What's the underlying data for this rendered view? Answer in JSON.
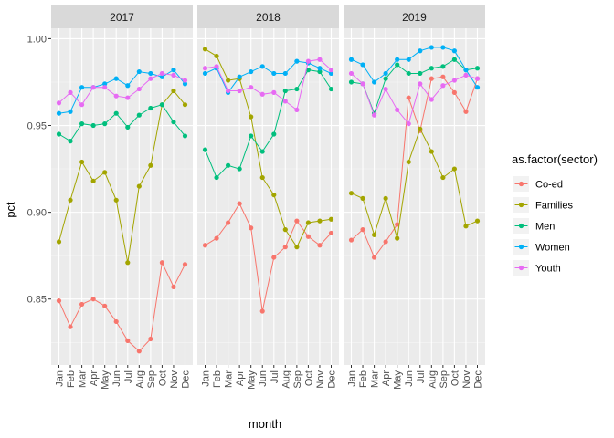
{
  "chart_data": {
    "type": "line",
    "xlabel": "month",
    "ylabel": "pct",
    "ylim": [
      0.812,
      1.006
    ],
    "yticks": [
      0.85,
      0.9,
      0.95,
      1.0
    ],
    "ytick_labels": [
      "0.85",
      "0.90",
      "0.95",
      "1.00"
    ],
    "x": [
      "Jan",
      "Feb",
      "Mar",
      "Apr",
      "May",
      "Jun",
      "Jul",
      "Aug",
      "Sep",
      "Oct",
      "Nov",
      "Dec"
    ],
    "legend": {
      "title": "as.factor(sector)",
      "position": "right"
    },
    "grid": true,
    "series_colors": {
      "Co-ed": "#F8766D",
      "Families": "#A3A500",
      "Men": "#00BF7D",
      "Women": "#00B0F6",
      "Youth": "#E76BF3"
    },
    "series_order": [
      "Co-ed",
      "Families",
      "Men",
      "Women",
      "Youth"
    ],
    "facets": [
      {
        "label": "2017",
        "series": [
          {
            "name": "Co-ed",
            "values": [
              0.849,
              0.834,
              0.847,
              0.85,
              0.846,
              0.837,
              0.826,
              0.82,
              0.827,
              0.871,
              0.857,
              0.87
            ]
          },
          {
            "name": "Families",
            "values": [
              0.883,
              0.907,
              0.929,
              0.918,
              0.923,
              0.907,
              0.871,
              0.915,
              0.927,
              0.962,
              0.97,
              0.962
            ]
          },
          {
            "name": "Men",
            "values": [
              0.945,
              0.941,
              0.951,
              0.95,
              0.951,
              0.957,
              0.949,
              0.956,
              0.96,
              0.962,
              0.952,
              0.944
            ]
          },
          {
            "name": "Women",
            "values": [
              0.957,
              0.958,
              0.972,
              0.972,
              0.974,
              0.977,
              0.973,
              0.981,
              0.98,
              0.978,
              0.982,
              0.974
            ]
          },
          {
            "name": "Youth",
            "values": [
              0.963,
              0.969,
              0.962,
              0.972,
              0.972,
              0.967,
              0.966,
              0.971,
              0.977,
              0.98,
              0.979,
              0.976
            ]
          }
        ]
      },
      {
        "label": "2018",
        "series": [
          {
            "name": "Co-ed",
            "values": [
              0.881,
              0.885,
              0.894,
              0.905,
              0.891,
              0.843,
              0.874,
              0.88,
              0.895,
              0.886,
              0.881,
              0.888
            ]
          },
          {
            "name": "Families",
            "values": [
              0.994,
              0.99,
              0.976,
              0.977,
              0.955,
              0.92,
              0.91,
              0.89,
              0.88,
              0.894,
              0.895,
              0.896
            ]
          },
          {
            "name": "Men",
            "values": [
              0.936,
              0.92,
              0.927,
              0.925,
              0.944,
              0.935,
              0.945,
              0.97,
              0.971,
              0.982,
              0.981,
              0.971
            ]
          },
          {
            "name": "Women",
            "values": [
              0.98,
              0.983,
              0.969,
              0.978,
              0.981,
              0.984,
              0.98,
              0.98,
              0.987,
              0.986,
              0.983,
              0.98
            ]
          },
          {
            "name": "Youth",
            "values": [
              0.983,
              0.984,
              0.97,
              0.97,
              0.972,
              0.968,
              0.969,
              0.964,
              0.959,
              0.987,
              0.988,
              0.982
            ]
          }
        ]
      },
      {
        "label": "2019",
        "series": [
          {
            "name": "Co-ed",
            "values": [
              0.884,
              0.89,
              0.874,
              0.883,
              0.893,
              0.966,
              0.947,
              0.977,
              0.978,
              0.969,
              0.958,
              0.977
            ]
          },
          {
            "name": "Families",
            "values": [
              0.911,
              0.908,
              0.887,
              0.908,
              0.885,
              0.929,
              0.948,
              0.935,
              0.92,
              0.925,
              0.892,
              0.895
            ]
          },
          {
            "name": "Men",
            "values": [
              0.975,
              0.974,
              0.957,
              0.977,
              0.985,
              0.98,
              0.98,
              0.983,
              0.984,
              0.988,
              0.982,
              0.983
            ]
          },
          {
            "name": "Women",
            "values": [
              0.988,
              0.985,
              0.975,
              0.98,
              0.988,
              0.988,
              0.993,
              0.995,
              0.995,
              0.993,
              0.982,
              0.972
            ]
          },
          {
            "name": "Youth",
            "values": [
              0.98,
              0.974,
              0.956,
              0.971,
              0.959,
              0.951,
              0.974,
              0.965,
              0.973,
              0.976,
              0.979,
              0.977
            ]
          }
        ]
      }
    ]
  }
}
